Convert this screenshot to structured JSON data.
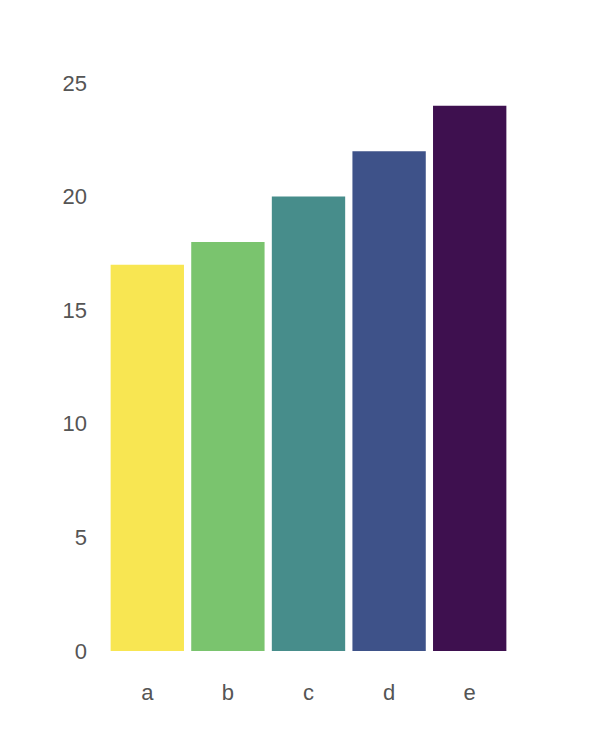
{
  "chart_data": {
    "type": "bar",
    "categories": [
      "a",
      "b",
      "c",
      "d",
      "e"
    ],
    "values": [
      17,
      18,
      20,
      22,
      24
    ],
    "colors": [
      "#f8e652",
      "#7ac46e",
      "#478d8b",
      "#3e5289",
      "#3e104f"
    ],
    "ylim": [
      0,
      25
    ],
    "yticks": [
      0,
      5,
      10,
      15,
      20,
      25
    ],
    "grid": false
  }
}
